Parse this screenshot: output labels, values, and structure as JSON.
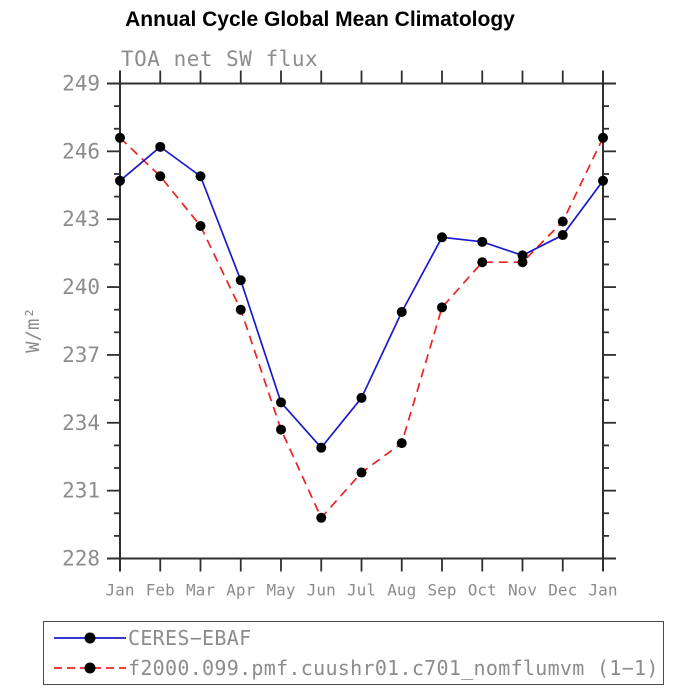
{
  "header": {
    "title": "Annual Cycle Global Mean Climatology",
    "subtitle": "TOA net SW flux"
  },
  "colors": {
    "title_text": "#000000",
    "axis_text": "#8c8c8c",
    "axis_line": "#2f2f2f",
    "series_obs": "#1a1acd",
    "series_model": "#ee2222",
    "marker": "#000000",
    "legend_border": "#4a4a4a"
  },
  "chart_data": {
    "type": "line",
    "title": "Annual Cycle Global Mean Climatology",
    "subtitle": "TOA net SW flux",
    "xlabel": "",
    "ylabel": "W/m²",
    "categories": [
      "Jan",
      "Feb",
      "Mar",
      "Apr",
      "May",
      "Jun",
      "Jul",
      "Aug",
      "Sep",
      "Oct",
      "Nov",
      "Dec",
      "Jan"
    ],
    "ylim": [
      228,
      249
    ],
    "ytick_major_interval": 3,
    "ytick_minor_interval": 1,
    "ytick_labels": [
      "249",
      "246",
      "243",
      "240",
      "237",
      "234",
      "231",
      "228"
    ],
    "grid": false,
    "legend_position": "bottom-box",
    "series": [
      {
        "name": "CERES−EBAF",
        "line_style": "solid",
        "color": "#1a1acd",
        "marker": "black-circle",
        "values": [
          244.7,
          246.2,
          244.9,
          240.3,
          234.9,
          232.9,
          235.1,
          238.9,
          242.2,
          242.0,
          241.4,
          242.3,
          244.7
        ]
      },
      {
        "name": "f2000.099.pmf.cuushr01.c701_nomflumvm (1−1)",
        "line_style": "dashed",
        "color": "#ee2222",
        "marker": "black-circle",
        "values": [
          246.6,
          244.9,
          242.7,
          239.0,
          233.7,
          229.8,
          231.8,
          233.1,
          239.1,
          241.1,
          241.1,
          242.9,
          246.6
        ]
      }
    ]
  }
}
